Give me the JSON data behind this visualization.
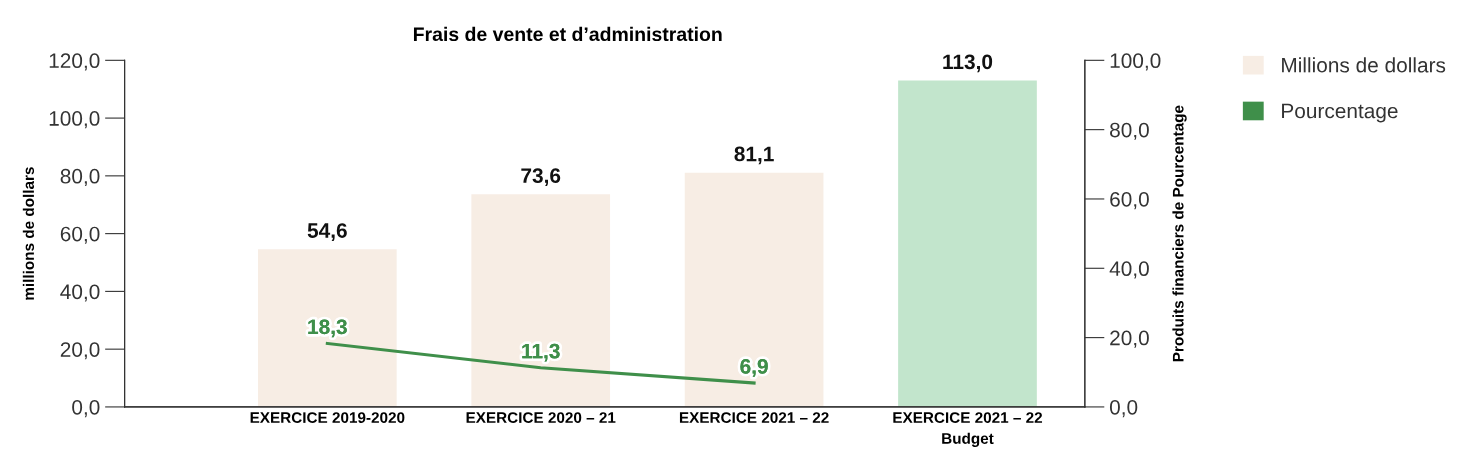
{
  "chart_data": {
    "type": "bar",
    "title": "Frais de vente et d’administration",
    "categories": [
      "EXERCICE 2019-2020",
      "EXERCICE 2020 – 21",
      "EXERCICE 2021 – 22",
      "EXERCICE 2021 – 22\nBudget"
    ],
    "series": [
      {
        "name": "Millions de dollars",
        "colors": [
          "#f7ede4",
          "#f7ede4",
          "#f7ede4",
          "#c2e5cc"
        ],
        "values": [
          54.6,
          73.6,
          81.1,
          113.0
        ]
      },
      {
        "name": "Pourcentage",
        "type": "line",
        "axis": "y2",
        "color": "#3f8f4a",
        "values": [
          18.3,
          11.3,
          6.9,
          null
        ]
      }
    ],
    "ylabel": "millions de dollars",
    "y2label": "Produits financiers de Pourcentage",
    "ylim": [
      0,
      120
    ],
    "yticks": [
      {
        "value": 0,
        "label": "0,0"
      },
      {
        "value": 20,
        "label": "20,0"
      },
      {
        "value": 40,
        "label": "40,0"
      },
      {
        "value": 60,
        "label": "60,0"
      },
      {
        "value": 80,
        "label": "80,0"
      },
      {
        "value": 100,
        "label": "100,0"
      },
      {
        "value": 120,
        "label": "120,0"
      }
    ],
    "y2lim": [
      0,
      100
    ],
    "y2ticks": [
      {
        "value": 0,
        "label": "0,0"
      },
      {
        "value": 20,
        "label": "20,0"
      },
      {
        "value": 40,
        "label": "40,0"
      },
      {
        "value": 60,
        "label": "60,0"
      },
      {
        "value": 80,
        "label": "80,0"
      },
      {
        "value": 100,
        "label": "100,0"
      }
    ],
    "value_labels": [
      [
        "54,6",
        "73,6",
        "81,1",
        "113,0"
      ],
      [
        "18,3",
        "11,3",
        "6,9",
        null
      ]
    ],
    "legend": "top right",
    "grid": false,
    "marker": "none"
  }
}
